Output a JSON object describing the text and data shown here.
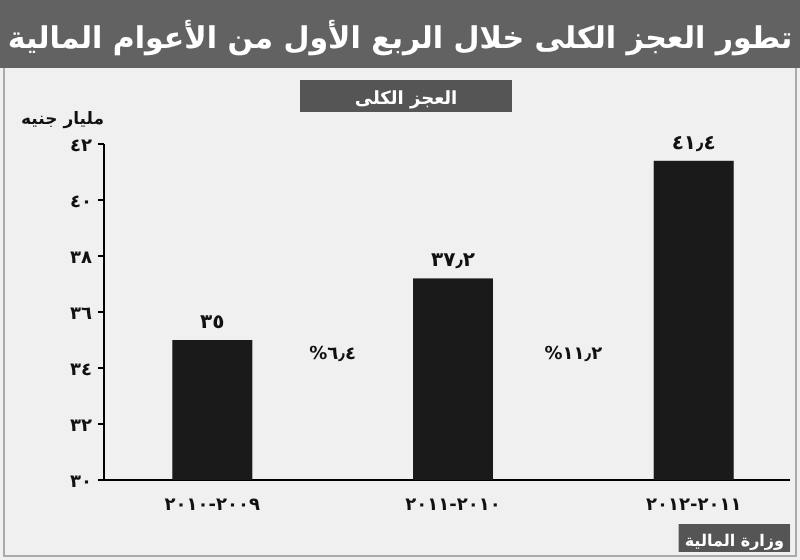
{
  "chart_data": {
    "type": "bar",
    "title": "تطور العجز الكلى خلال الربع الأول من الأعوام المالية",
    "subtitle": "العجز الكلى",
    "ylabel": "مليار جنيه",
    "categories": [
      "٢٠٠٩-٢٠١٠",
      "٢٠١٠-٢٠١١",
      "٢٠١١-٢٠١٢"
    ],
    "values": [
      35,
      37.2,
      41.4
    ],
    "value_labels": [
      "٣٥",
      "٣٧٫٢",
      "٤١٫٤"
    ],
    "color": "#1a1a1a",
    "ylim": [
      30,
      42
    ],
    "yticks": [
      {
        "value": 30,
        "label": "٣٠"
      },
      {
        "value": 32,
        "label": "٣٢"
      },
      {
        "value": 34,
        "label": "٣٤"
      },
      {
        "value": 36,
        "label": "٣٦"
      },
      {
        "value": 38,
        "label": "٣٨"
      },
      {
        "value": 40,
        "label": "٤٠"
      },
      {
        "value": 42,
        "label": "٤٢"
      }
    ],
    "annotations": [
      "٦٫٤%",
      "١١٫٢%",
      "وزارة المالية"
    ]
  }
}
